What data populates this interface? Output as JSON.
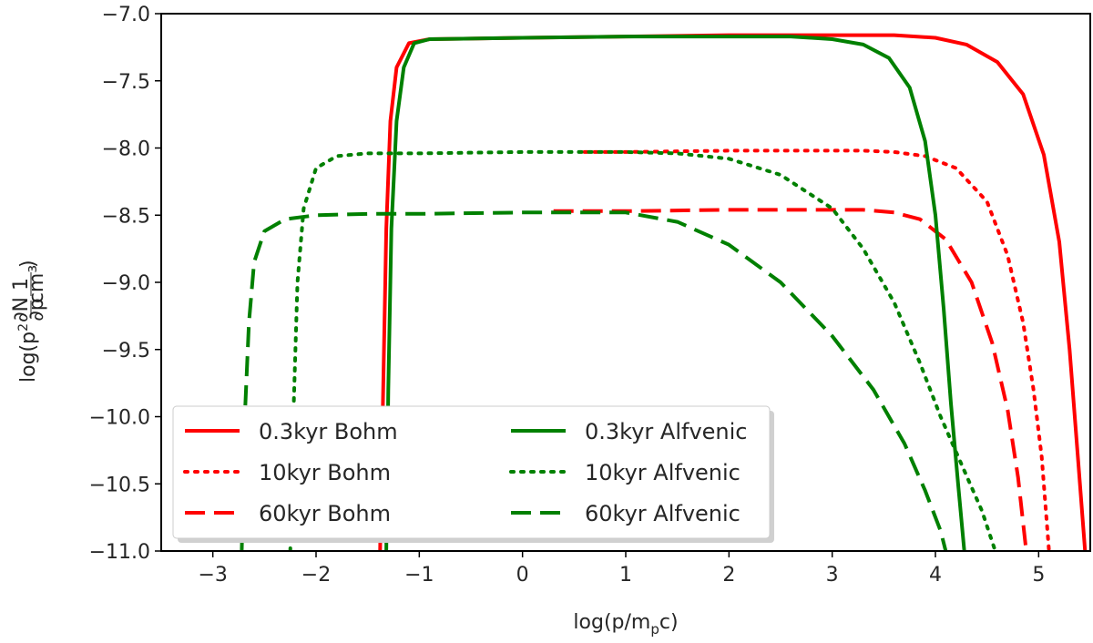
{
  "chart_data": {
    "type": "line",
    "xlabel": "log(p/m_pc)",
    "ylabel_parts": {
      "pre": "log(p",
      "sup": "2",
      "frac1_num": "∂N",
      "frac1_den": "∂p",
      "frac2_num": "1",
      "frac2_den": "cm³",
      "post": ")"
    },
    "xlim": [
      -3.5,
      5.5
    ],
    "ylim": [
      -11.0,
      -7.0
    ],
    "xticks": [
      -3,
      -2,
      -1,
      0,
      1,
      2,
      3,
      4,
      5
    ],
    "xtick_labels": [
      "−3",
      "−2",
      "−1",
      "0",
      "1",
      "2",
      "3",
      "4",
      "5"
    ],
    "yticks": [
      -11.0,
      -10.5,
      -10.0,
      -9.5,
      -9.0,
      -8.5,
      -8.0,
      -7.5,
      -7.0
    ],
    "ytick_labels": [
      "−11.0",
      "−10.5",
      "−10.0",
      "−9.5",
      "−9.0",
      "−8.5",
      "−8.0",
      "−7.5",
      "−7.0"
    ],
    "grid": false,
    "legend_position": "lower-left",
    "colors": {
      "bohm": "#ff0000",
      "alfvenic": "#008000"
    },
    "series": [
      {
        "name": "0.3kyr Bohm",
        "color": "#ff0000",
        "style": "solid",
        "points": [
          [
            -1.38,
            -11.0
          ],
          [
            -1.35,
            -9.8
          ],
          [
            -1.32,
            -8.6
          ],
          [
            -1.28,
            -7.8
          ],
          [
            -1.22,
            -7.4
          ],
          [
            -1.1,
            -7.22
          ],
          [
            -0.9,
            -7.19
          ],
          [
            0,
            -7.18
          ],
          [
            1,
            -7.17
          ],
          [
            2,
            -7.16
          ],
          [
            3,
            -7.16
          ],
          [
            3.6,
            -7.16
          ],
          [
            4.0,
            -7.18
          ],
          [
            4.3,
            -7.23
          ],
          [
            4.6,
            -7.36
          ],
          [
            4.85,
            -7.6
          ],
          [
            5.05,
            -8.05
          ],
          [
            5.2,
            -8.7
          ],
          [
            5.3,
            -9.5
          ],
          [
            5.38,
            -10.3
          ],
          [
            5.45,
            -11.0
          ]
        ]
      },
      {
        "name": "10kyr  Bohm",
        "color": "#ff0000",
        "style": "dotted",
        "points": [
          [
            0.6,
            -8.03
          ],
          [
            1,
            -8.03
          ],
          [
            2,
            -8.02
          ],
          [
            3,
            -8.02
          ],
          [
            3.3,
            -8.02
          ],
          [
            3.6,
            -8.03
          ],
          [
            3.9,
            -8.06
          ],
          [
            4.2,
            -8.15
          ],
          [
            4.5,
            -8.4
          ],
          [
            4.7,
            -8.8
          ],
          [
            4.85,
            -9.3
          ],
          [
            4.95,
            -9.8
          ],
          [
            5.03,
            -10.3
          ],
          [
            5.1,
            -11.0
          ]
        ]
      },
      {
        "name": "60kyr  Bohm",
        "color": "#ff0000",
        "style": "dashed",
        "points": [
          [
            0.3,
            -8.47
          ],
          [
            1,
            -8.47
          ],
          [
            2,
            -8.46
          ],
          [
            3,
            -8.46
          ],
          [
            3.3,
            -8.46
          ],
          [
            3.6,
            -8.48
          ],
          [
            3.85,
            -8.53
          ],
          [
            4.1,
            -8.68
          ],
          [
            4.35,
            -9.0
          ],
          [
            4.55,
            -9.45
          ],
          [
            4.7,
            -9.95
          ],
          [
            4.8,
            -10.45
          ],
          [
            4.88,
            -11.0
          ]
        ]
      },
      {
        "name": "0.3kyr Alfvenic",
        "color": "#008000",
        "style": "solid",
        "points": [
          [
            -1.32,
            -11.0
          ],
          [
            -1.3,
            -9.8
          ],
          [
            -1.27,
            -8.6
          ],
          [
            -1.22,
            -7.8
          ],
          [
            -1.15,
            -7.4
          ],
          [
            -1.05,
            -7.22
          ],
          [
            -0.9,
            -7.19
          ],
          [
            0,
            -7.18
          ],
          [
            1,
            -7.17
          ],
          [
            2,
            -7.17
          ],
          [
            2.6,
            -7.17
          ],
          [
            3.0,
            -7.19
          ],
          [
            3.3,
            -7.23
          ],
          [
            3.55,
            -7.33
          ],
          [
            3.75,
            -7.55
          ],
          [
            3.9,
            -7.95
          ],
          [
            4.0,
            -8.5
          ],
          [
            4.08,
            -9.2
          ],
          [
            4.15,
            -9.9
          ],
          [
            4.22,
            -10.5
          ],
          [
            4.28,
            -11.0
          ]
        ]
      },
      {
        "name": "10kyr  Alfvenic",
        "color": "#008000",
        "style": "dotted",
        "points": [
          [
            -2.25,
            -11.0
          ],
          [
            -2.22,
            -10.0
          ],
          [
            -2.18,
            -9.0
          ],
          [
            -2.12,
            -8.45
          ],
          [
            -2.0,
            -8.15
          ],
          [
            -1.8,
            -8.06
          ],
          [
            -1.5,
            -8.04
          ],
          [
            -1,
            -8.04
          ],
          [
            0,
            -8.03
          ],
          [
            1,
            -8.03
          ],
          [
            1.5,
            -8.04
          ],
          [
            2,
            -8.08
          ],
          [
            2.5,
            -8.2
          ],
          [
            3.0,
            -8.45
          ],
          [
            3.3,
            -8.75
          ],
          [
            3.6,
            -9.15
          ],
          [
            3.85,
            -9.6
          ],
          [
            4.05,
            -10.0
          ],
          [
            4.25,
            -10.35
          ],
          [
            4.45,
            -10.7
          ],
          [
            4.58,
            -11.0
          ]
        ]
      },
      {
        "name": "60kyr  Alfvenic",
        "color": "#008000",
        "style": "dashed",
        "points": [
          [
            -2.72,
            -11.0
          ],
          [
            -2.69,
            -10.0
          ],
          [
            -2.65,
            -9.3
          ],
          [
            -2.6,
            -8.85
          ],
          [
            -2.5,
            -8.62
          ],
          [
            -2.3,
            -8.53
          ],
          [
            -2.0,
            -8.5
          ],
          [
            -1.5,
            -8.49
          ],
          [
            -1,
            -8.49
          ],
          [
            0,
            -8.48
          ],
          [
            1,
            -8.48
          ],
          [
            1.5,
            -8.55
          ],
          [
            2,
            -8.72
          ],
          [
            2.5,
            -9.0
          ],
          [
            3.0,
            -9.4
          ],
          [
            3.4,
            -9.8
          ],
          [
            3.7,
            -10.2
          ],
          [
            3.9,
            -10.55
          ],
          [
            4.05,
            -10.85
          ],
          [
            4.1,
            -11.0
          ]
        ]
      }
    ]
  }
}
